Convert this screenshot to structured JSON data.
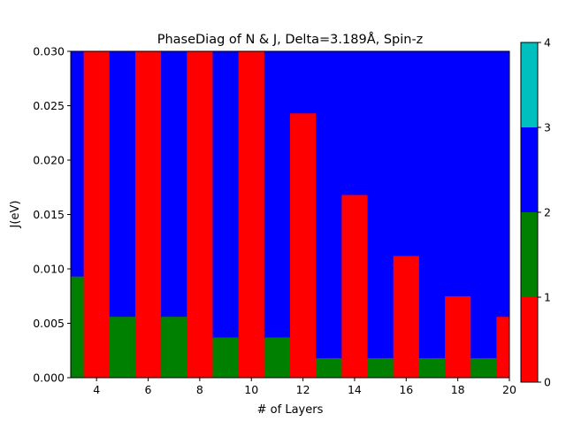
{
  "chart_data": {
    "type": "heatmap",
    "title": "PhaseDiag of N & J, Delta=3.189Å, Spin-z",
    "xlabel": "# of Layers",
    "ylabel": "J(eV)",
    "xlim": [
      3,
      20
    ],
    "ylim": [
      0,
      0.03
    ],
    "xticks": [
      4,
      6,
      8,
      10,
      12,
      14,
      16,
      18,
      20
    ],
    "yticks": [
      0.0,
      0.005,
      0.01,
      0.015,
      0.02,
      0.025,
      0.03
    ],
    "ytick_labels": [
      "0.000",
      "0.005",
      "0.010",
      "0.015",
      "0.020",
      "0.025",
      "0.030"
    ],
    "phase_colors": {
      "0": "#ff0000",
      "1": "#008000",
      "2": "#0000ff",
      "3": "#00bfbf"
    },
    "columns": [
      {
        "n": 3,
        "phases": [
          {
            "phase": 1,
            "from": 0,
            "to": 0.0093
          },
          {
            "phase": 2,
            "from": 0.0093,
            "to": 0.03
          }
        ]
      },
      {
        "n": 4,
        "phases": [
          {
            "phase": 0,
            "from": 0,
            "to": 0.03
          }
        ]
      },
      {
        "n": 5,
        "phases": [
          {
            "phase": 1,
            "from": 0,
            "to": 0.0056
          },
          {
            "phase": 2,
            "from": 0.0056,
            "to": 0.03
          }
        ]
      },
      {
        "n": 6,
        "phases": [
          {
            "phase": 0,
            "from": 0,
            "to": 0.03
          }
        ]
      },
      {
        "n": 7,
        "phases": [
          {
            "phase": 1,
            "from": 0,
            "to": 0.0056
          },
          {
            "phase": 2,
            "from": 0.0056,
            "to": 0.03
          }
        ]
      },
      {
        "n": 8,
        "phases": [
          {
            "phase": 0,
            "from": 0,
            "to": 0.03
          }
        ]
      },
      {
        "n": 9,
        "phases": [
          {
            "phase": 1,
            "from": 0,
            "to": 0.0037
          },
          {
            "phase": 2,
            "from": 0.0037,
            "to": 0.03
          }
        ]
      },
      {
        "n": 10,
        "phases": [
          {
            "phase": 0,
            "from": 0,
            "to": 0.03
          }
        ]
      },
      {
        "n": 11,
        "phases": [
          {
            "phase": 1,
            "from": 0,
            "to": 0.0037
          },
          {
            "phase": 2,
            "from": 0.0037,
            "to": 0.03
          }
        ]
      },
      {
        "n": 12,
        "phases": [
          {
            "phase": 0,
            "from": 0,
            "to": 0.0243
          },
          {
            "phase": 2,
            "from": 0.0243,
            "to": 0.03
          }
        ]
      },
      {
        "n": 13,
        "phases": [
          {
            "phase": 1,
            "from": 0,
            "to": 0.0018
          },
          {
            "phase": 2,
            "from": 0.0018,
            "to": 0.03
          }
        ]
      },
      {
        "n": 14,
        "phases": [
          {
            "phase": 0,
            "from": 0,
            "to": 0.0168
          },
          {
            "phase": 2,
            "from": 0.0168,
            "to": 0.03
          }
        ]
      },
      {
        "n": 15,
        "phases": [
          {
            "phase": 1,
            "from": 0,
            "to": 0.0018
          },
          {
            "phase": 2,
            "from": 0.0018,
            "to": 0.03
          }
        ]
      },
      {
        "n": 16,
        "phases": [
          {
            "phase": 0,
            "from": 0,
            "to": 0.0112
          },
          {
            "phase": 2,
            "from": 0.0112,
            "to": 0.03
          }
        ]
      },
      {
        "n": 17,
        "phases": [
          {
            "phase": 1,
            "from": 0,
            "to": 0.0018
          },
          {
            "phase": 2,
            "from": 0.0018,
            "to": 0.03
          }
        ]
      },
      {
        "n": 18,
        "phases": [
          {
            "phase": 0,
            "from": 0,
            "to": 0.0075
          },
          {
            "phase": 2,
            "from": 0.0075,
            "to": 0.03
          }
        ]
      },
      {
        "n": 19,
        "phases": [
          {
            "phase": 1,
            "from": 0,
            "to": 0.0018
          },
          {
            "phase": 2,
            "from": 0.0018,
            "to": 0.03
          }
        ]
      },
      {
        "n": 20,
        "phases": [
          {
            "phase": 0,
            "from": 0,
            "to": 0.0056
          },
          {
            "phase": 2,
            "from": 0.0056,
            "to": 0.03
          }
        ]
      }
    ],
    "colorbar": {
      "range": [
        0,
        4
      ],
      "ticks": [
        0,
        1,
        2,
        3,
        4
      ],
      "segments": [
        {
          "from": 0,
          "to": 1,
          "color": "#ff0000"
        },
        {
          "from": 1,
          "to": 2,
          "color": "#008000"
        },
        {
          "from": 2,
          "to": 3,
          "color": "#0000ff"
        },
        {
          "from": 3,
          "to": 4,
          "color": "#00bfbf"
        }
      ]
    }
  }
}
